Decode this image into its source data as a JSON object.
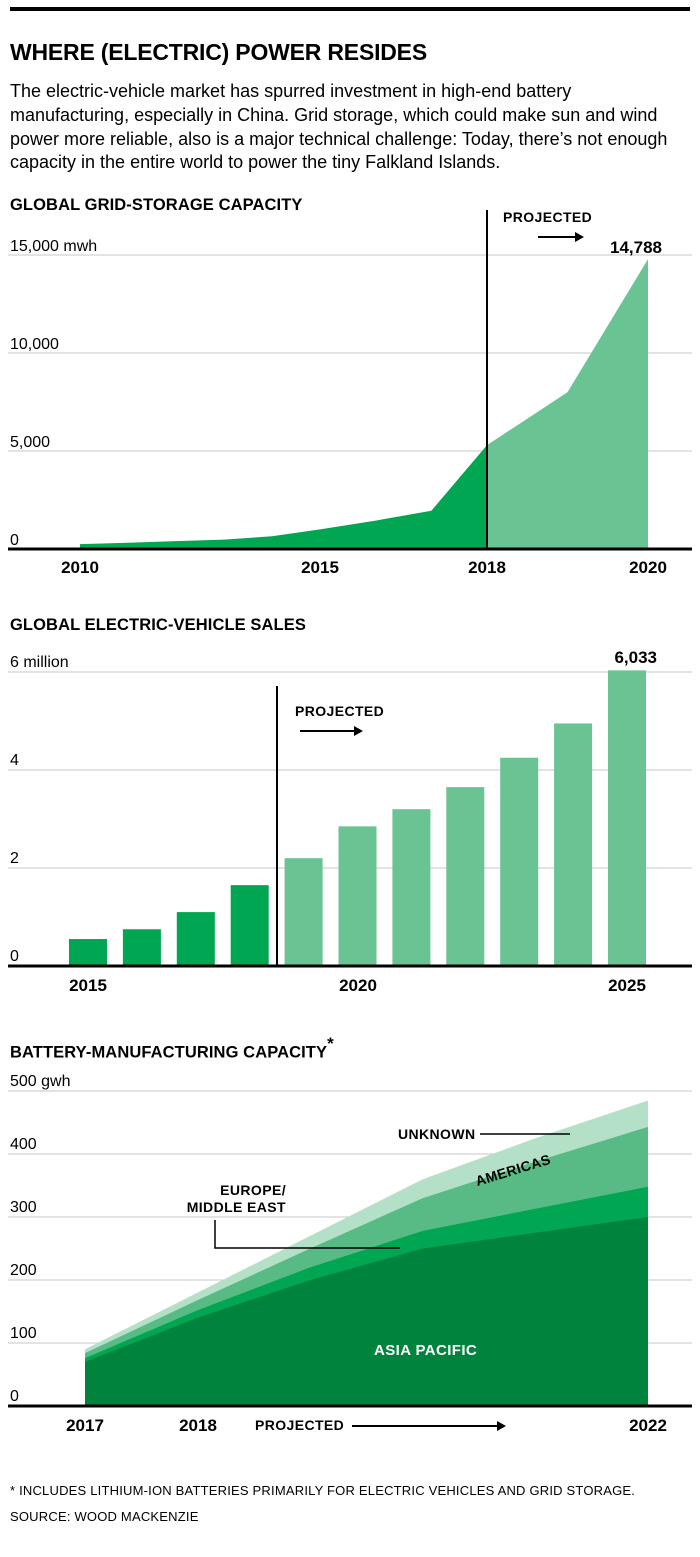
{
  "page": {
    "title": "WHERE (ELECTRIC) POWER RESIDES",
    "description": "The electric-vehicle market has spurred investment in high-end battery manufacturing, especially in China. Grid storage, which could make sun and wind power more reliable, also is a major technical challenge: Today, there’s not enough capacity in the entire world to power the tiny Falkland Islands."
  },
  "colors": {
    "actual_green": "#00A651",
    "projected_green": "#69C392",
    "asia_green": "#00843D",
    "europe_green": "#00A651",
    "americas_green": "#58BB85",
    "unknown_green": "#B5E0C8",
    "grid_gray": "#C7C7C7",
    "axis_black": "#000000"
  },
  "chart_data": [
    {
      "id": "grid-storage",
      "type": "area",
      "title": "GLOBAL GRID-STORAGE CAPACITY",
      "projected_label": "PROJECTED",
      "peak_label": "14,788",
      "y_unit": "mwh",
      "ylim": [
        0,
        15000
      ],
      "grid": true,
      "y_ticks": [
        {
          "value": 15000,
          "label": "15,000 mwh"
        },
        {
          "value": 10000,
          "label": "10,000"
        },
        {
          "value": 5000,
          "label": "5,000"
        },
        {
          "value": 0,
          "label": "0"
        }
      ],
      "x_ticks": [
        "2010",
        "2015",
        "2018",
        "2020"
      ],
      "years": [
        2010,
        2011,
        2012,
        2013,
        2014,
        2015,
        2016,
        2017,
        2018,
        2019,
        2020
      ],
      "values": [
        250,
        320,
        400,
        480,
        650,
        1000,
        1450,
        1950,
        5300,
        8000,
        14788
      ],
      "projected_from": 2018
    },
    {
      "id": "ev-sales",
      "type": "bar",
      "title": "GLOBAL ELECTRIC-VEHICLE SALES",
      "projected_label": "PROJECTED",
      "peak_label": "6,033",
      "y_unit": "million",
      "ylim": [
        0,
        6
      ],
      "grid": true,
      "y_ticks": [
        {
          "value": 6,
          "label": "6 million"
        },
        {
          "value": 4,
          "label": "4"
        },
        {
          "value": 2,
          "label": "2"
        },
        {
          "value": 0,
          "label": "0"
        }
      ],
      "x_ticks": [
        "2015",
        "2020",
        "2025"
      ],
      "years": [
        2015,
        2016,
        2017,
        2018,
        2019,
        2020,
        2021,
        2022,
        2023,
        2024,
        2025
      ],
      "values": [
        0.55,
        0.75,
        1.1,
        1.65,
        2.2,
        2.85,
        3.2,
        3.65,
        4.25,
        4.95,
        6.033
      ],
      "projected_from": 2019
    },
    {
      "id": "battery-capacity",
      "type": "stacked-area",
      "title": "BATTERY-MANUFACTURING CAPACITY",
      "title_superscript": "*",
      "projected_label": "PROJECTED",
      "y_unit": "gwh",
      "ylim": [
        0,
        500
      ],
      "grid": true,
      "y_ticks": [
        {
          "value": 500,
          "label": "500 gwh"
        },
        {
          "value": 400,
          "label": "400"
        },
        {
          "value": 300,
          "label": "300"
        },
        {
          "value": 200,
          "label": "200"
        },
        {
          "value": 100,
          "label": "100"
        },
        {
          "value": 0,
          "label": "0"
        }
      ],
      "x_ticks": [
        "2017",
        "2018",
        "2022"
      ],
      "years": [
        2017,
        2018,
        2019,
        2020,
        2021,
        2022
      ],
      "series": [
        {
          "name": "ASIA PACIFIC",
          "values": [
            70,
            140,
            200,
            250,
            275,
            300
          ]
        },
        {
          "name": "EUROPE/MIDDLE EAST",
          "values": [
            6,
            12,
            20,
            28,
            38,
            48
          ]
        },
        {
          "name": "AMERICAS",
          "values": [
            8,
            16,
            30,
            52,
            75,
            95
          ]
        },
        {
          "name": "UNKNOWN",
          "values": [
            6,
            12,
            20,
            30,
            37,
            42
          ]
        }
      ],
      "annotations": {
        "europe_line1": "EUROPE/",
        "europe_line2": "MIDDLE EAST"
      },
      "projected_from": 2018
    }
  ],
  "footer": {
    "footnote": "* INCLUDES LITHIUM-ION BATTERIES PRIMARILY FOR ELECTRIC VEHICLES AND GRID STORAGE.",
    "source": "SOURCE: WOOD MACKENZIE"
  }
}
